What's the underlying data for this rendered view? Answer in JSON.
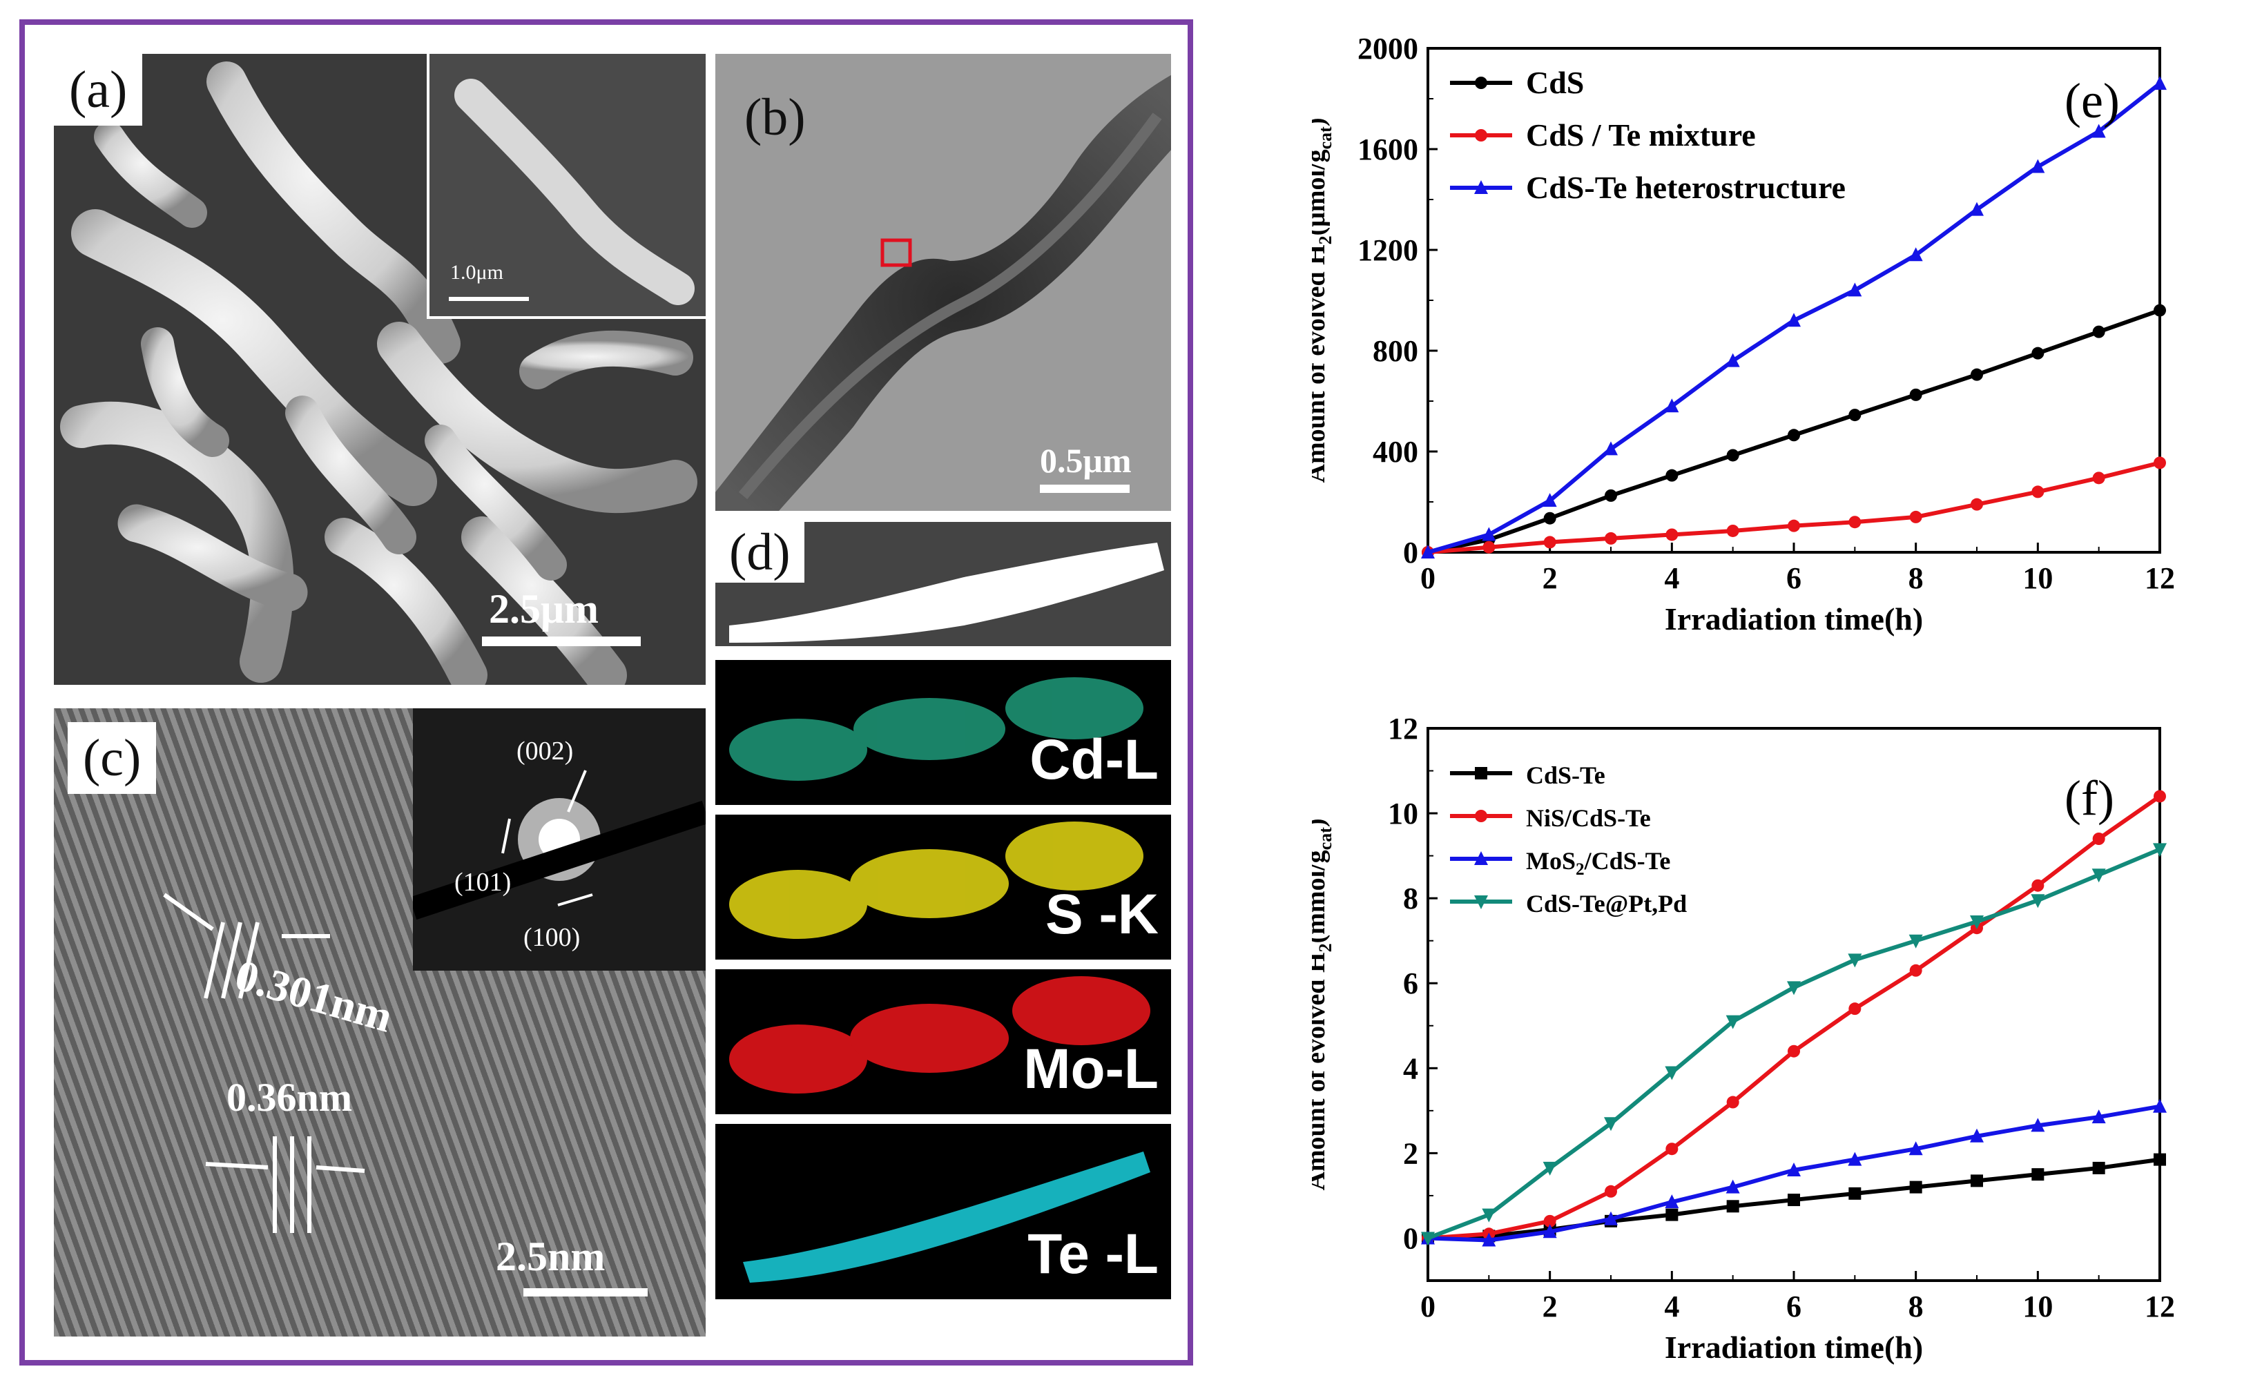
{
  "panels": {
    "a": {
      "label": "(a)",
      "scale_main": "2.5μm",
      "scale_inset": "1.0μm"
    },
    "b": {
      "label": "(b)",
      "scale": "0.5μm"
    },
    "c": {
      "label": "(c)",
      "spacing1": "0.301nm",
      "spacing2": "0.36nm",
      "scale": "2.5nm",
      "saed": [
        "(002)",
        "(101)",
        "(100)"
      ]
    },
    "d": {
      "label": "(d)",
      "maps": [
        {
          "element": "Cd-L",
          "color": "#1f9a7a"
        },
        {
          "element": "S -K",
          "color": "#d8cc12"
        },
        {
          "element": "Mo-L",
          "color": "#e0141a"
        },
        {
          "element": "Te -L",
          "color": "#18c4d0"
        }
      ]
    }
  },
  "chart_data": [
    {
      "type": "line",
      "panel_label": "(e)",
      "xlabel": "Irradiation time(h)",
      "ylabel_main": "Amount of evolved H",
      "ylabel_sub": "2",
      "ylabel_unit": "(μmol/g",
      "ylabel_unit_sub": "cat",
      "ylabel_unit_close": ")",
      "xlim": [
        0,
        12
      ],
      "ylim": [
        0,
        2000
      ],
      "xticks": [
        0,
        2,
        4,
        6,
        8,
        10,
        12
      ],
      "yticks": [
        0,
        400,
        800,
        1200,
        1600,
        2000
      ],
      "x": [
        0,
        1,
        2,
        3,
        4,
        5,
        6,
        7,
        8,
        9,
        10,
        11,
        12
      ],
      "series": [
        {
          "name": "CdS",
          "color": "#000000",
          "marker": "circle",
          "values": [
            0,
            50,
            135,
            225,
            305,
            385,
            465,
            545,
            625,
            705,
            790,
            875,
            960
          ]
        },
        {
          "name": "CdS / Te mixture",
          "color": "#e8141a",
          "marker": "circle",
          "values": [
            0,
            20,
            40,
            55,
            70,
            85,
            105,
            120,
            140,
            190,
            240,
            295,
            355
          ]
        },
        {
          "name": "CdS-Te heterostructure",
          "color": "#1414e6",
          "marker": "triangle",
          "values": [
            0,
            70,
            205,
            410,
            580,
            760,
            920,
            1040,
            1180,
            1360,
            1530,
            1670,
            1860
          ]
        }
      ]
    },
    {
      "type": "line",
      "panel_label": "(f)",
      "xlabel": "Irradiation time(h)",
      "ylabel_main": "Amount of evolved H",
      "ylabel_sub": "2",
      "ylabel_unit": "(mmol/g",
      "ylabel_unit_sub": "cat",
      "ylabel_unit_close": ")",
      "xlim": [
        0,
        12
      ],
      "ylim": [
        -1,
        12
      ],
      "xticks": [
        0,
        2,
        4,
        6,
        8,
        10,
        12
      ],
      "yticks": [
        0,
        2,
        4,
        6,
        8,
        10,
        12
      ],
      "x": [
        0,
        1,
        2,
        3,
        4,
        5,
        6,
        7,
        8,
        9,
        10,
        11,
        12
      ],
      "series": [
        {
          "name": "CdS-Te",
          "color": "#000000",
          "marker": "square",
          "values": [
            0,
            0.05,
            0.2,
            0.4,
            0.55,
            0.75,
            0.9,
            1.05,
            1.2,
            1.35,
            1.5,
            1.65,
            1.85
          ]
        },
        {
          "name": "NiS/CdS-Te",
          "color": "#e8141a",
          "marker": "circle",
          "values": [
            0,
            0.1,
            0.4,
            1.1,
            2.1,
            3.2,
            4.4,
            5.4,
            6.3,
            7.3,
            8.3,
            9.4,
            10.4
          ]
        },
        {
          "name": "MoS2/CdS-Te",
          "color": "#1414e6",
          "marker": "triangle",
          "values": [
            0,
            -0.05,
            0.15,
            0.45,
            0.85,
            1.2,
            1.6,
            1.85,
            2.1,
            2.4,
            2.65,
            2.85,
            3.1
          ]
        },
        {
          "name": "CdS-Te@Pt,Pd",
          "color": "#128a7a",
          "marker": "invtriangle",
          "values": [
            0,
            0.55,
            1.65,
            2.7,
            3.9,
            5.1,
            5.9,
            6.55,
            7.0,
            7.45,
            7.95,
            8.55,
            9.15
          ]
        }
      ]
    }
  ]
}
